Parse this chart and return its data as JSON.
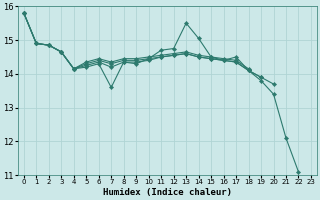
{
  "xlabel": "Humidex (Indice chaleur)",
  "bg_color": "#cce8e8",
  "grid_color": "#b0d4d4",
  "line_color": "#2d7a6e",
  "xlim": [
    -0.5,
    23.5
  ],
  "ylim": [
    11,
    16
  ],
  "yticks": [
    11,
    12,
    13,
    14,
    15,
    16
  ],
  "xticks": [
    0,
    1,
    2,
    3,
    4,
    5,
    6,
    7,
    8,
    9,
    10,
    11,
    12,
    13,
    14,
    15,
    16,
    17,
    18,
    19,
    20,
    21,
    22,
    23
  ],
  "series": [
    [
      15.8,
      14.9,
      14.85,
      14.65,
      14.15,
      14.2,
      14.3,
      13.6,
      14.35,
      14.3,
      14.45,
      14.7,
      14.75,
      15.5,
      15.05,
      14.5,
      14.4,
      14.5,
      14.1,
      13.8,
      13.4,
      12.1,
      11.1,
      null
    ],
    [
      15.8,
      14.9,
      14.85,
      14.65,
      14.15,
      14.25,
      14.35,
      14.2,
      14.35,
      14.35,
      14.4,
      14.5,
      14.55,
      14.6,
      14.5,
      14.45,
      14.4,
      14.35,
      14.1,
      13.9,
      13.7,
      null,
      null,
      null
    ],
    [
      15.8,
      14.9,
      14.85,
      14.65,
      14.15,
      14.3,
      14.4,
      14.3,
      14.4,
      14.4,
      14.45,
      14.5,
      14.55,
      14.6,
      14.5,
      14.45,
      14.4,
      14.35,
      14.1,
      13.9,
      null,
      null,
      null,
      null
    ],
    [
      15.8,
      14.9,
      14.85,
      14.65,
      14.15,
      14.35,
      14.45,
      14.35,
      14.45,
      14.45,
      14.5,
      14.55,
      14.6,
      14.65,
      14.55,
      14.5,
      14.45,
      14.4,
      14.15,
      null,
      null,
      null,
      null,
      null
    ]
  ]
}
